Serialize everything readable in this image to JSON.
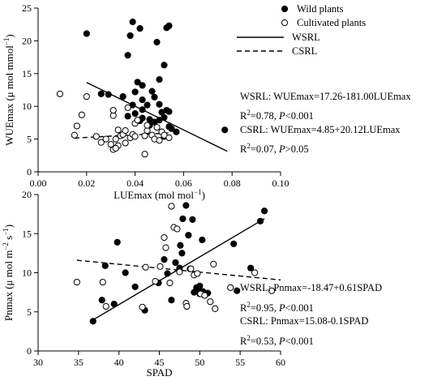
{
  "colors": {
    "ink": "#000000",
    "background": "#ffffff",
    "open_marker_fill": "#ffffff"
  },
  "chart_data": [
    {
      "type": "scatter",
      "title": "",
      "xlabel_parts": {
        "base": "LUEmax (mol mol",
        "sup": "−1",
        "end": ")"
      },
      "ylabel_parts": {
        "base": "WUEmax (μ mol mmol",
        "sup": "−1",
        "end": ")"
      },
      "xlim": [
        0.0,
        0.1
      ],
      "ylim": [
        0,
        25
      ],
      "xticks": [
        0.0,
        0.02,
        0.04,
        0.06,
        0.08,
        0.1
      ],
      "xtick_labels": [
        "0.00",
        "0.02",
        "0.04",
        "0.06",
        "0.08",
        "0.10"
      ],
      "yticks": [
        0,
        5,
        10,
        15,
        20,
        25
      ],
      "ytick_labels": [
        "0",
        "5",
        "10",
        "15",
        "20",
        "25"
      ],
      "grid": false,
      "legend": [
        {
          "label": "Wild plants",
          "marker": "filled-circle"
        },
        {
          "label": "Cultivated plants",
          "marker": "open-circle"
        },
        {
          "label": "WSRL",
          "line": "solid"
        },
        {
          "label": "CSRL",
          "line": "dashed"
        }
      ],
      "series": [
        {
          "name": "Wild plants",
          "marker": "filled",
          "points": [
            [
              0.02,
              21.1
            ],
            [
              0.026,
              11.9
            ],
            [
              0.029,
              11.8
            ],
            [
              0.037,
              17.8
            ],
            [
              0.038,
              20.8
            ],
            [
              0.039,
              22.9
            ],
            [
              0.042,
              21.9
            ],
            [
              0.053,
              22.0
            ],
            [
              0.054,
              22.3
            ],
            [
              0.052,
              16.3
            ],
            [
              0.05,
              14.1
            ],
            [
              0.049,
              19.8
            ],
            [
              0.041,
              13.7
            ],
            [
              0.043,
              13.2
            ],
            [
              0.04,
              12.2
            ],
            [
              0.043,
              11.0
            ],
            [
              0.047,
              12.3
            ],
            [
              0.048,
              11.4
            ],
            [
              0.045,
              10.2
            ],
            [
              0.05,
              10.3
            ],
            [
              0.035,
              11.5
            ],
            [
              0.039,
              10.2
            ],
            [
              0.043,
              9.5
            ],
            [
              0.051,
              9.1
            ],
            [
              0.053,
              9.4
            ],
            [
              0.054,
              9.2
            ],
            [
              0.037,
              8.5
            ],
            [
              0.04,
              8.9
            ],
            [
              0.043,
              8.2
            ],
            [
              0.046,
              8.0
            ],
            [
              0.048,
              7.6
            ],
            [
              0.05,
              7.9
            ],
            [
              0.052,
              8.3
            ],
            [
              0.042,
              7.8
            ],
            [
              0.046,
              7.1
            ],
            [
              0.054,
              6.9
            ],
            [
              0.055,
              6.6
            ],
            [
              0.057,
              6.1
            ],
            [
              0.051,
              6.1
            ],
            [
              0.052,
              5.4
            ],
            [
              0.077,
              6.4
            ]
          ]
        },
        {
          "name": "Cultivated plants",
          "marker": "open",
          "points": [
            [
              0.009,
              11.9
            ],
            [
              0.015,
              5.6
            ],
            [
              0.016,
              7.0
            ],
            [
              0.018,
              8.7
            ],
            [
              0.02,
              11.5
            ],
            [
              0.024,
              5.4
            ],
            [
              0.026,
              4.5
            ],
            [
              0.028,
              5.0
            ],
            [
              0.03,
              4.2
            ],
            [
              0.031,
              3.4
            ],
            [
              0.031,
              8.6
            ],
            [
              0.031,
              9.4
            ],
            [
              0.032,
              5.0
            ],
            [
              0.033,
              4.0
            ],
            [
              0.033,
              6.4
            ],
            [
              0.034,
              5.5
            ],
            [
              0.035,
              5.7
            ],
            [
              0.036,
              4.4
            ],
            [
              0.036,
              6.3
            ],
            [
              0.037,
              9.8
            ],
            [
              0.038,
              5.2
            ],
            [
              0.039,
              5.7
            ],
            [
              0.04,
              5.4
            ],
            [
              0.04,
              7.4
            ],
            [
              0.041,
              7.9
            ],
            [
              0.044,
              5.5
            ],
            [
              0.044,
              2.7
            ],
            [
              0.045,
              6.3
            ],
            [
              0.045,
              7.1
            ],
            [
              0.047,
              5.6
            ],
            [
              0.048,
              5.0
            ],
            [
              0.049,
              6.8
            ],
            [
              0.05,
              4.8
            ],
            [
              0.051,
              6.1
            ],
            [
              0.052,
              5.6
            ],
            [
              0.054,
              5.2
            ],
            [
              0.032,
              3.6
            ]
          ]
        }
      ],
      "lines": [
        {
          "name": "WSRL",
          "style": "solid",
          "intercept": 17.26,
          "slope": -181.0,
          "x_range": [
            0.02,
            0.078
          ]
        },
        {
          "name": "CSRL",
          "style": "dashed",
          "intercept": 4.85,
          "slope": 20.12,
          "x_range": [
            0.015,
            0.055
          ]
        }
      ],
      "annotations": [
        {
          "parts": {
            "a": "WSRL: WUEmax=17.26-181.00LUEmax"
          }
        },
        {
          "parts": {
            "a": "R",
            "sup": "2",
            "b": "=0.78, ",
            "i": "P",
            "c": "<0.001"
          }
        },
        {
          "parts": {
            "a": "CSRL: WUEmax=4.85+20.12LUEmax"
          }
        },
        {
          "parts": {
            "a": "R",
            "sup": "2",
            "b": "=0.07, ",
            "i": "P",
            "c": ">0.05"
          }
        }
      ]
    },
    {
      "type": "scatter",
      "title": "",
      "xlabel_parts": {
        "base": "SPAD"
      },
      "ylabel_parts": {
        "base": "Pnmax (μ mol m",
        "sup": "−2",
        "mid": " s",
        "sup2": "−1",
        "end": ")"
      },
      "xlim": [
        30,
        60
      ],
      "ylim": [
        0,
        20
      ],
      "xticks": [
        30,
        35,
        40,
        45,
        50,
        55,
        60
      ],
      "xtick_labels": [
        "30",
        "35",
        "40",
        "45",
        "50",
        "55",
        "60"
      ],
      "yticks": [
        0,
        5,
        10,
        15,
        20
      ],
      "ytick_labels": [
        "0",
        "5",
        "10",
        "15",
        "20"
      ],
      "grid": false,
      "series": [
        {
          "name": "Wild plants",
          "marker": "filled",
          "points": [
            [
              36.8,
              3.8
            ],
            [
              37.9,
              6.5
            ],
            [
              38.3,
              10.9
            ],
            [
              39.4,
              6.0
            ],
            [
              39.8,
              13.9
            ],
            [
              40.8,
              10.0
            ],
            [
              42.0,
              8.2
            ],
            [
              43.2,
              5.2
            ],
            [
              44.9,
              8.7
            ],
            [
              45.6,
              11.7
            ],
            [
              46.0,
              9.9
            ],
            [
              46.5,
              6.5
            ],
            [
              47.0,
              11.3
            ],
            [
              47.5,
              10.6
            ],
            [
              47.6,
              13.5
            ],
            [
              47.8,
              12.5
            ],
            [
              47.9,
              16.9
            ],
            [
              48.3,
              18.6
            ],
            [
              48.6,
              14.8
            ],
            [
              48.8,
              10.5
            ],
            [
              49.1,
              16.8
            ],
            [
              49.3,
              7.5
            ],
            [
              49.6,
              8.1
            ],
            [
              49.9,
              7.8
            ],
            [
              50.0,
              7.3
            ],
            [
              50.3,
              14.2
            ],
            [
              50.0,
              8.3
            ],
            [
              50.4,
              7.6
            ],
            [
              51.0,
              7.4
            ],
            [
              54.6,
              7.7
            ],
            [
              54.2,
              13.7
            ],
            [
              56.3,
              10.6
            ],
            [
              57.5,
              16.6
            ],
            [
              58.0,
              17.9
            ]
          ]
        },
        {
          "name": "Cultivated plants",
          "marker": "open",
          "points": [
            [
              34.8,
              8.8
            ],
            [
              38.0,
              8.8
            ],
            [
              38.4,
              5.7
            ],
            [
              42.9,
              5.6
            ],
            [
              43.3,
              10.7
            ],
            [
              44.5,
              8.9
            ],
            [
              45.1,
              10.8
            ],
            [
              45.6,
              14.5
            ],
            [
              45.8,
              13.2
            ],
            [
              46.3,
              8.7
            ],
            [
              46.5,
              18.5
            ],
            [
              46.8,
              15.8
            ],
            [
              47.2,
              15.6
            ],
            [
              47.5,
              10.1
            ],
            [
              48.3,
              6.1
            ],
            [
              48.4,
              5.7
            ],
            [
              48.9,
              10.5
            ],
            [
              49.3,
              9.7
            ],
            [
              49.7,
              9.9
            ],
            [
              50.1,
              7.3
            ],
            [
              50.6,
              7.1
            ],
            [
              51.3,
              6.3
            ],
            [
              51.7,
              11.1
            ],
            [
              51.9,
              5.4
            ],
            [
              53.8,
              8.1
            ],
            [
              56.8,
              10.0
            ],
            [
              58.9,
              7.7
            ]
          ]
        }
      ],
      "lines": [
        {
          "name": "WSRL",
          "style": "solid",
          "intercept": -18.47,
          "slope": 0.61,
          "x_range": [
            36.7,
            58.0
          ]
        },
        {
          "name": "CSRL",
          "style": "dashed",
          "intercept": 15.08,
          "slope": -0.1,
          "x_range": [
            34.8,
            60.0
          ]
        }
      ],
      "annotations": [
        {
          "parts": {
            "a": "WSRL: Pnmax=-18.47+0.61SPAD"
          }
        },
        {
          "parts": {
            "a": "R",
            "sup": "2",
            "b": "=0.95, ",
            "i": "P",
            "c": "<0.001"
          }
        },
        {
          "parts": {
            "a": "CSRL: Pnmax=15.08-0.1SPAD"
          }
        },
        {
          "parts": {
            "a": "R",
            "sup": "2",
            "b": "=0.53, ",
            "i": "P",
            "c": "<0.001"
          }
        }
      ]
    }
  ]
}
